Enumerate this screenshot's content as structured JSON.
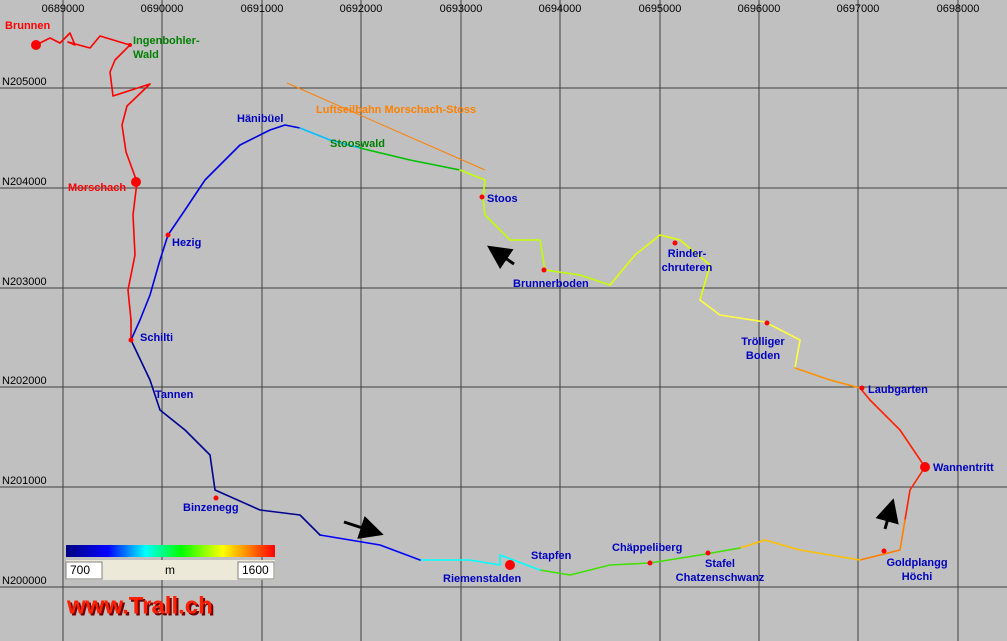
{
  "grid": {
    "x_labels": [
      "0689000",
      "0690000",
      "0691000",
      "0692000",
      "0693000",
      "0694000",
      "0695000",
      "0696000",
      "0697000",
      "0698000"
    ],
    "y_labels": [
      "N205000",
      "N204000",
      "N203000",
      "N202000",
      "N201000",
      "N200000"
    ]
  },
  "places": [
    {
      "lines": [
        "Brunnen"
      ],
      "kind": "town"
    },
    {
      "lines": [
        "Ingenbohler-",
        "Wald"
      ],
      "kind": "forest"
    },
    {
      "lines": [
        "Morschach"
      ],
      "kind": "town"
    },
    {
      "lines": [
        "Hänibüel"
      ],
      "kind": "place"
    },
    {
      "lines": [
        "Stooswald"
      ],
      "kind": "forest"
    },
    {
      "lines": [
        "Luftseilbahn Morschach-Stoss"
      ],
      "kind": "cableway"
    },
    {
      "lines": [
        "Stoos"
      ],
      "kind": "place"
    },
    {
      "lines": [
        "Hezig"
      ],
      "kind": "place"
    },
    {
      "lines": [
        "Brunnerboden"
      ],
      "kind": "place"
    },
    {
      "lines": [
        "Rinder-",
        "chruteren"
      ],
      "kind": "place"
    },
    {
      "lines": [
        "Schilti"
      ],
      "kind": "place"
    },
    {
      "lines": [
        "Trölliger",
        "Boden"
      ],
      "kind": "place"
    },
    {
      "lines": [
        "Tannen"
      ],
      "kind": "place"
    },
    {
      "lines": [
        "Laubgarten"
      ],
      "kind": "place"
    },
    {
      "lines": [
        "Wannentritt"
      ],
      "kind": "place"
    },
    {
      "lines": [
        "Binzenegg"
      ],
      "kind": "place"
    },
    {
      "lines": [
        "Stapfen"
      ],
      "kind": "place"
    },
    {
      "lines": [
        "Chäppeliberg"
      ],
      "kind": "place"
    },
    {
      "lines": [
        "Riemenstalden"
      ],
      "kind": "place"
    },
    {
      "lines": [
        "Stafel",
        "Chatzenschwanz"
      ],
      "kind": "place"
    },
    {
      "lines": [
        "Goldplangg",
        "Höchi"
      ],
      "kind": "place"
    }
  ],
  "legend": {
    "min": "700",
    "unit": "m",
    "max": "1600"
  },
  "watermark": "www.Trall.ch"
}
